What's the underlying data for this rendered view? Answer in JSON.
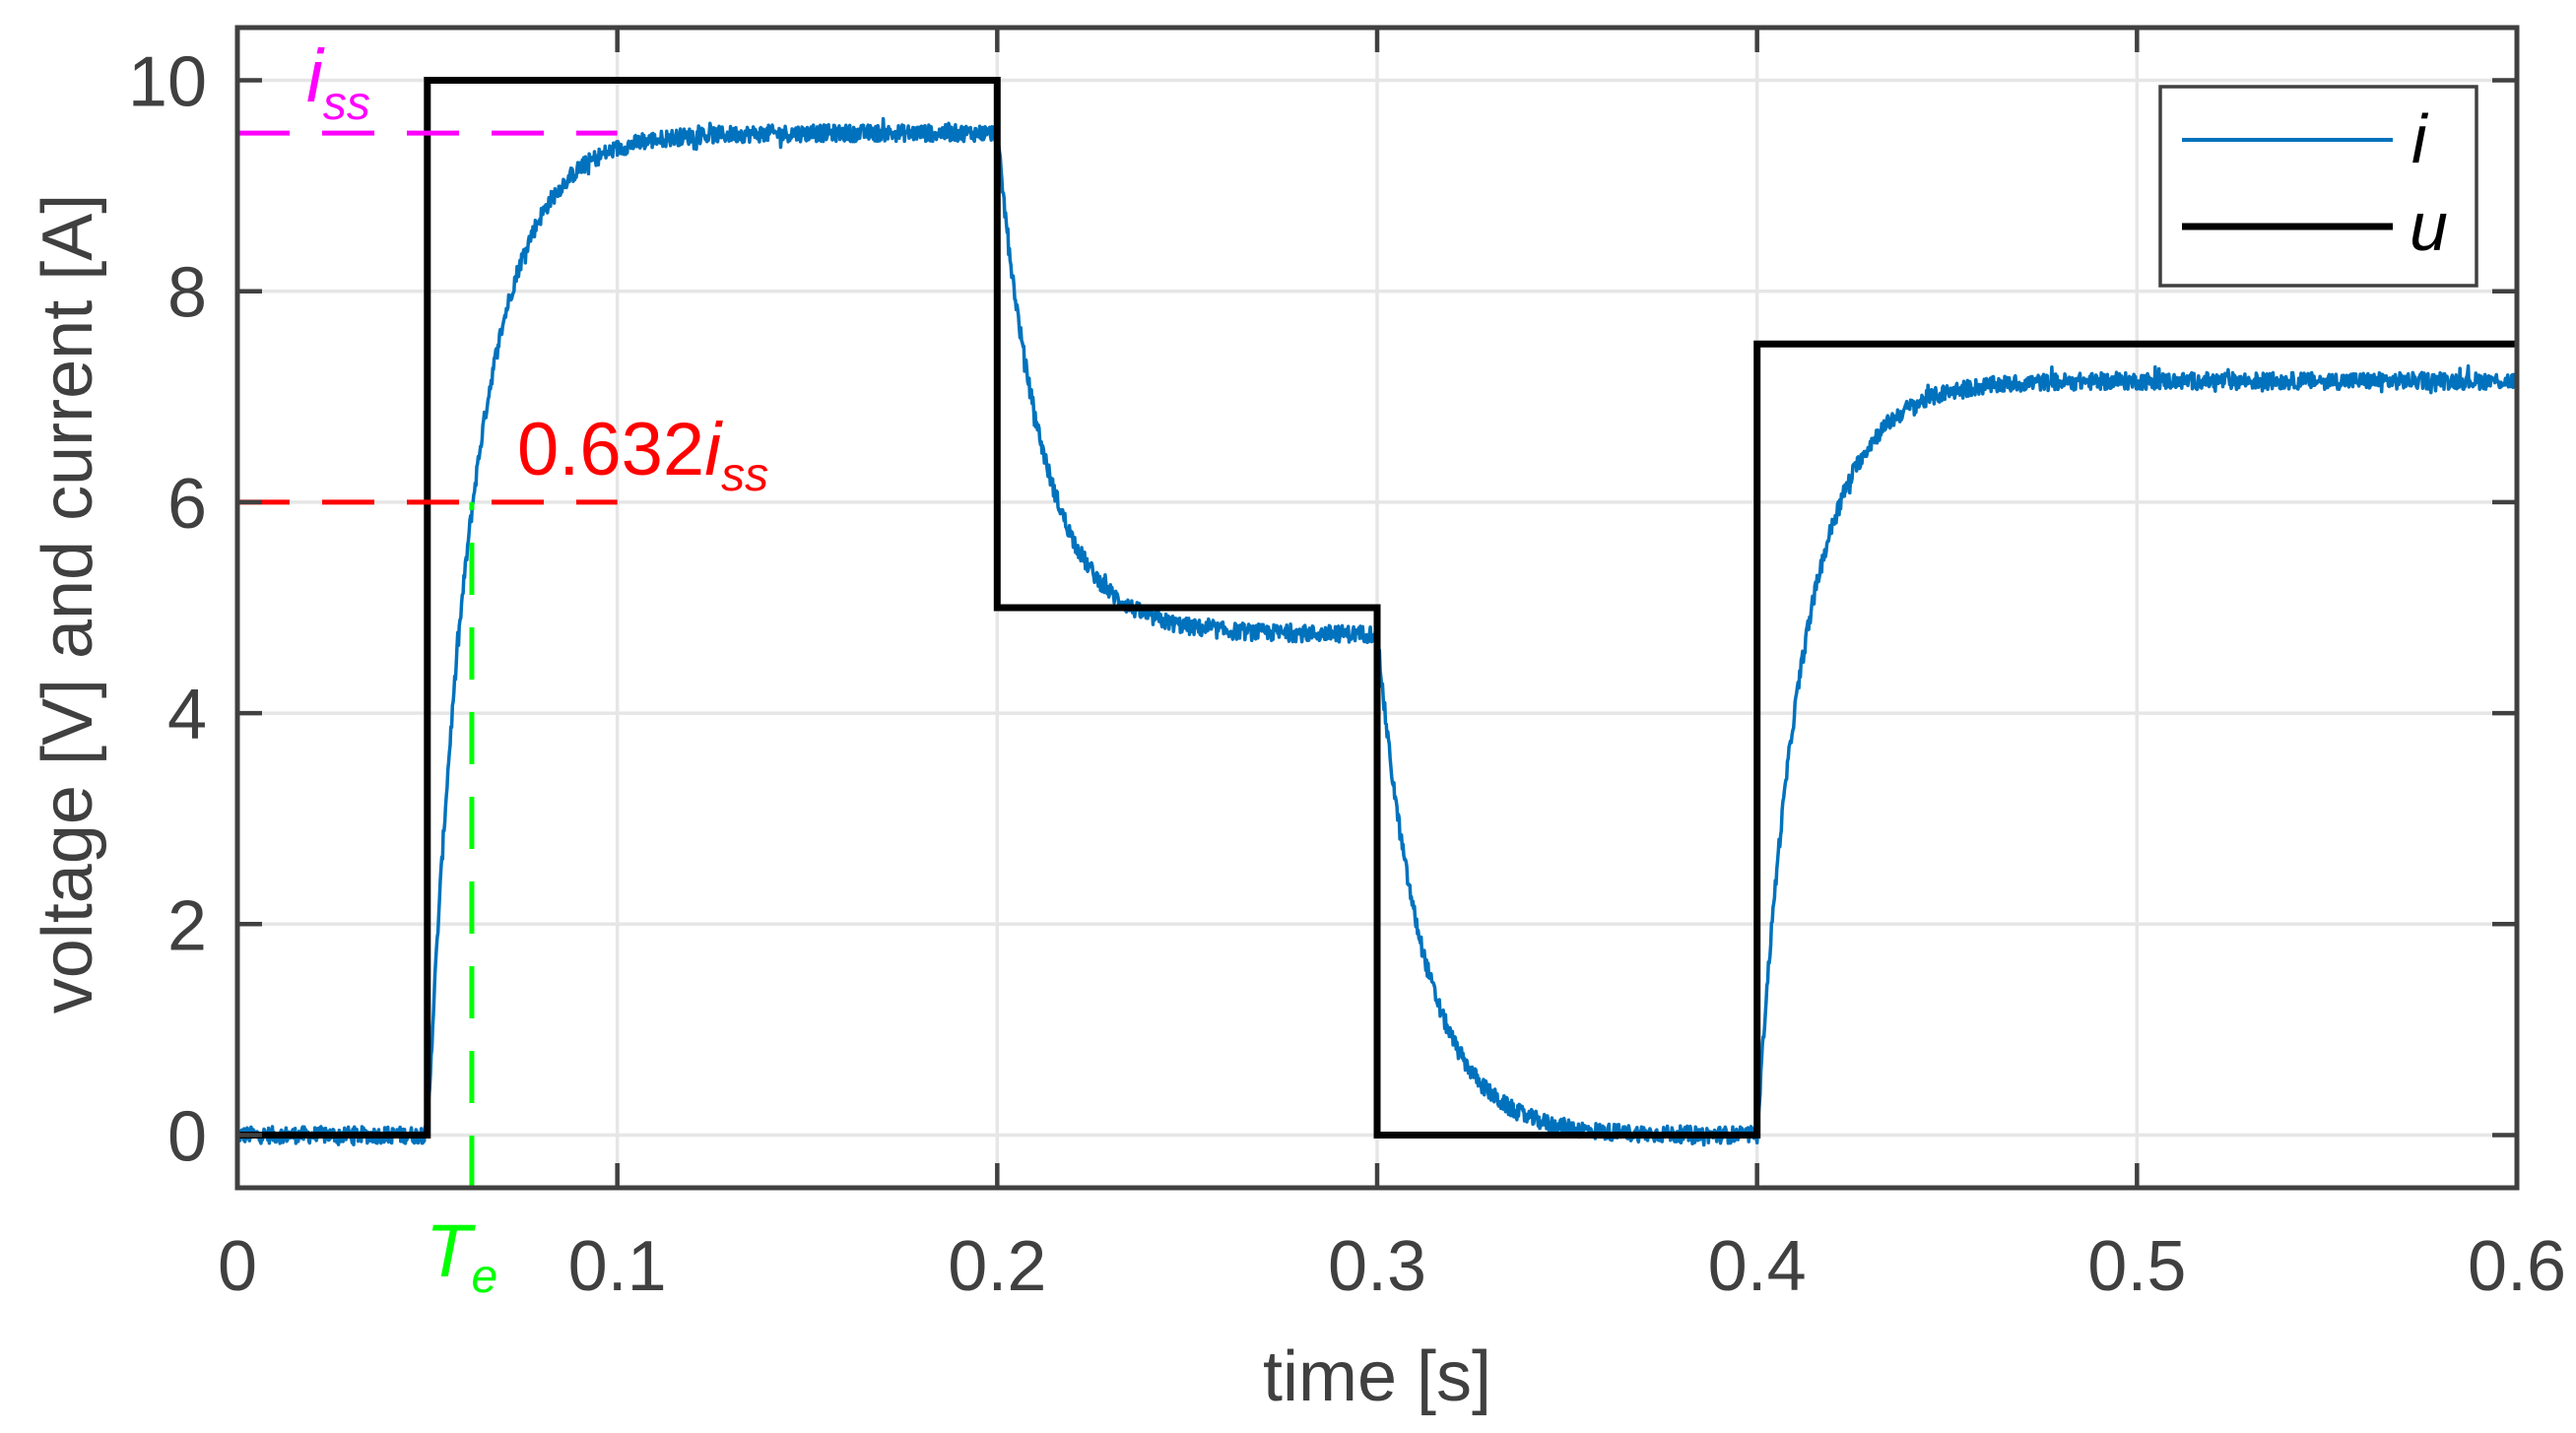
{
  "chart_data": {
    "type": "line",
    "title": "",
    "xlabel": "time [s]",
    "ylabel": "voltage [V] and current [A]",
    "xlim": [
      0,
      0.6
    ],
    "ylim": [
      -0.5,
      10.5
    ],
    "grid": true,
    "legend_position": "northeast",
    "x_ticks": [
      0,
      0.1,
      0.2,
      0.3,
      0.4,
      0.5,
      0.6
    ],
    "x_tick_labels": [
      "0",
      "0.1",
      "0.2",
      "0.3",
      "0.4",
      "0.5",
      "0.6"
    ],
    "y_ticks": [
      0,
      2,
      4,
      6,
      8,
      10
    ],
    "y_tick_labels": [
      "0",
      "2",
      "4",
      "6",
      "8",
      "10"
    ],
    "series": [
      {
        "name": "i",
        "color": "#0072BD",
        "style": "thin noisy line",
        "description": "measured current, first-order response to voltage steps",
        "segments": [
          {
            "t_start": 0.0,
            "t_end": 0.05,
            "from": 0.0,
            "to": 0.0
          },
          {
            "t_start": 0.05,
            "t_end": 0.2,
            "from": 0.0,
            "to": 9.5
          },
          {
            "t_start": 0.2,
            "t_end": 0.3,
            "from": 9.5,
            "to": 4.75
          },
          {
            "t_start": 0.3,
            "t_end": 0.4,
            "from": 4.75,
            "to": 0.0
          },
          {
            "t_start": 0.4,
            "t_end": 0.6,
            "from": 0.0,
            "to": 7.15
          }
        ],
        "time_constant": 0.012,
        "noise_amplitude": 0.08,
        "steady_state_values": [
          0.0,
          9.5,
          4.75,
          0.0,
          7.15
        ]
      },
      {
        "name": "u",
        "color": "#000000",
        "style": "thick step line",
        "x": [
          0,
          0.05,
          0.05,
          0.2,
          0.2,
          0.3,
          0.3,
          0.4,
          0.4,
          0.6
        ],
        "y": [
          0,
          0,
          10,
          10,
          5,
          5,
          0,
          0,
          7.5,
          7.5
        ]
      }
    ],
    "annotations": [
      {
        "id": "iss",
        "text": "i",
        "subscript": "ss",
        "color": "#FF00FF",
        "line": "horizontal dashed",
        "y": 9.5,
        "x_from": 0,
        "x_to": 0.1
      },
      {
        "id": "632",
        "text": "0.632i",
        "subscript": "ss",
        "color": "#FF0000",
        "line": "horizontal dashed",
        "y": 6.0,
        "x_from": 0,
        "x_to": 0.1
      },
      {
        "id": "te",
        "text": "T",
        "subscript": "e",
        "color": "#00FF00",
        "line": "vertical dashed",
        "x": 0.0617,
        "y_from": -0.5,
        "y_to": 6.0
      }
    ]
  },
  "legend": {
    "items": [
      {
        "label": "i",
        "color": "#0072BD"
      },
      {
        "label": "u",
        "color": "#000000"
      }
    ]
  },
  "annotations": {
    "iss_main": "i",
    "iss_sub": "ss",
    "frac_main": "0.632i",
    "frac_sub": "ss",
    "te_main": "T",
    "te_sub": "e"
  },
  "axes": {
    "xlabel": "time [s]",
    "ylabel": "voltage [V] and current [A]"
  },
  "colors": {
    "axis": "#404040",
    "grid": "#E6E6E6",
    "current": "#0072BD",
    "voltage": "#000000",
    "iss": "#FF00FF",
    "frac": "#FF0000",
    "te": "#00FF00"
  }
}
